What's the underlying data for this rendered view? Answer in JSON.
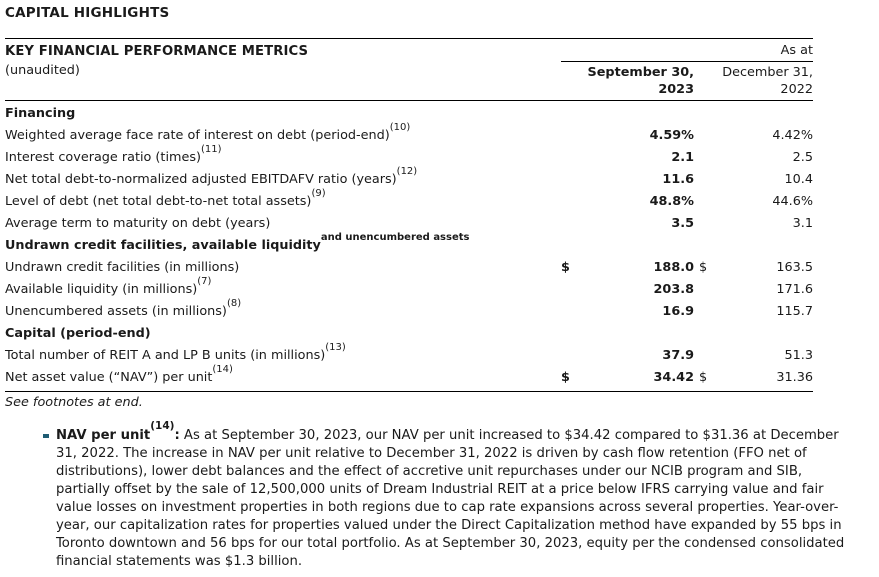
{
  "doc_title": "CAPITAL HIGHLIGHTS",
  "table": {
    "title": "KEY FINANCIAL PERFORMANCE METRICS",
    "subtitle": "(unaudited)",
    "as_at_label": "As at",
    "col1_line1": "September 30,",
    "col1_line2": "2023",
    "col2_line1": "December 31,",
    "col2_line2": "2022",
    "rows": [
      {
        "type": "section",
        "label": "Financing",
        "sup": "",
        "d1": "",
        "v1": "",
        "d2": "",
        "v2": ""
      },
      {
        "type": "data",
        "label": "Weighted average face rate of interest on debt (period-end)",
        "sup": "(10)",
        "d1": "",
        "v1": "4.59%",
        "d2": "",
        "v2": "4.42%"
      },
      {
        "type": "data",
        "label": "Interest coverage ratio (times)",
        "sup": "(11)",
        "d1": "",
        "v1": "2.1",
        "d2": "",
        "v2": "2.5"
      },
      {
        "type": "data",
        "label": "Net total debt-to-normalized adjusted EBITDAFV ratio (years)",
        "sup": "(12)",
        "d1": "",
        "v1": "11.6",
        "d2": "",
        "v2": "10.4"
      },
      {
        "type": "data",
        "label": "Level of debt (net total debt-to-net total assets)",
        "sup": "(9)",
        "d1": "",
        "v1": "48.8%",
        "d2": "",
        "v2": "44.6%"
      },
      {
        "type": "data",
        "label": "Average term to maturity on debt (years)",
        "sup": "",
        "d1": "",
        "v1": "3.5",
        "d2": "",
        "v2": "3.1"
      },
      {
        "type": "section",
        "label": "Undrawn credit facilities, available liquidity",
        "sup": "and unencumbered assets",
        "d1": "",
        "v1": "",
        "d2": "",
        "v2": ""
      },
      {
        "type": "data",
        "label": "Undrawn credit facilities (in millions)",
        "sup": "",
        "d1": "$",
        "v1": "188.0",
        "d2": "$",
        "v2": "163.5"
      },
      {
        "type": "data",
        "label": "Available liquidity (in millions)",
        "sup": "(7)",
        "d1": "",
        "v1": "203.8",
        "d2": "",
        "v2": "171.6"
      },
      {
        "type": "data",
        "label": "Unencumbered assets (in millions)",
        "sup": "(8)",
        "d1": "",
        "v1": "16.9",
        "d2": "",
        "v2": "115.7"
      },
      {
        "type": "section",
        "label": "Capital (period-end)",
        "sup": "",
        "d1": "",
        "v1": "",
        "d2": "",
        "v2": ""
      },
      {
        "type": "data",
        "label": "Total number of REIT A and LP B units (in millions)",
        "sup": "(13)",
        "d1": "",
        "v1": "37.9",
        "d2": "",
        "v2": "51.3"
      },
      {
        "type": "data",
        "label": "Net asset value (“NAV”) per unit",
        "sup": "(14)",
        "d1": "$",
        "v1": "34.42",
        "d2": "$",
        "v2": "31.36"
      }
    ]
  },
  "footnotes_note": "See footnotes at end.",
  "bullet": {
    "lead": "NAV per unit",
    "lead_sup": "(14)",
    "lead_colon": ":",
    "body": " As at September 30, 2023, our NAV per unit increased to $34.42 compared to $31.36 at December 31, 2022. The increase in NAV per unit relative to December 31, 2022 is driven by cash flow retention (FFO net of distributions), lower debt balances and the effect of accretive unit repurchases under our NCIB program and SIB, partially offset by the sale of 12,500,000 units of Dream Industrial REIT at a price below IFRS carrying value and fair value losses on investment properties in both regions due to cap rate expansions across several properties. Year-over-year, our capitalization rates for properties valued under the Direct Capitalization method have expanded by 55 bps in Toronto downtown and 56 bps for our total portfolio. As at September 30, 2023, equity per the condensed consolidated financial statements was $1.3 billion."
  },
  "colors": {
    "bullet_square": "#1f5c73",
    "text": "#1a1a1a",
    "rule": "#000000"
  }
}
